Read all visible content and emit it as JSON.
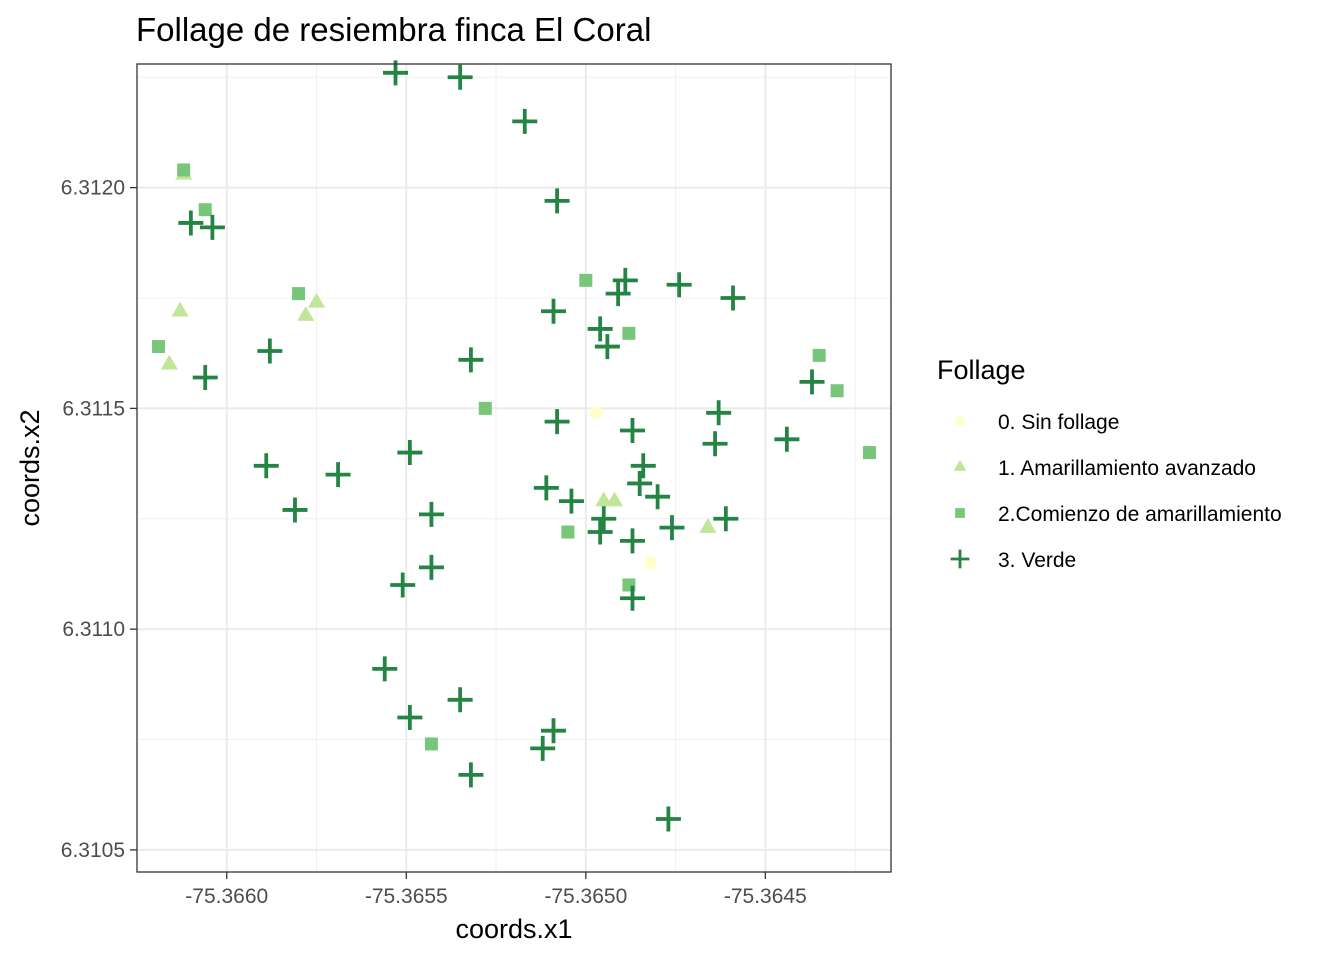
{
  "chart_data": {
    "type": "scatter",
    "title": "Follage de resiembra finca El Coral",
    "xlabel": "coords.x1",
    "ylabel": "coords.x2",
    "xlim": [
      -75.36625,
      -75.36415
    ],
    "ylim": [
      6.31045,
      6.31228
    ],
    "xticks": [
      -75.366,
      -75.3655,
      -75.365,
      -75.3645
    ],
    "xtick_labels": [
      "-75.3660",
      "-75.3655",
      "-75.3650",
      "-75.3645"
    ],
    "yticks": [
      6.3105,
      6.311,
      6.3115,
      6.312
    ],
    "ytick_labels": [
      "6.3105",
      "6.3110",
      "6.3115",
      "6.3120"
    ],
    "grid": true,
    "legend_title": "Follage",
    "legend_position": "right",
    "series": [
      {
        "name": "0. Sin follage",
        "marker": "circle",
        "color": "#ffffcc",
        "points": [
          [
            -75.36497,
            6.31149
          ],
          [
            -75.36482,
            6.31115
          ]
        ]
      },
      {
        "name": "1. Amarillamiento avanzado",
        "marker": "triangle",
        "color": "#c2e699",
        "points": [
          [
            -75.36612,
            6.31203
          ],
          [
            -75.36613,
            6.31172
          ],
          [
            -75.36616,
            6.3116
          ],
          [
            -75.36575,
            6.31174
          ],
          [
            -75.36578,
            6.31171
          ],
          [
            -75.36495,
            6.31129
          ],
          [
            -75.36492,
            6.31129
          ],
          [
            -75.36466,
            6.31123
          ]
        ]
      },
      {
        "name": "2.Comienzo de amarillamiento",
        "marker": "square",
        "color": "#78c679",
        "points": [
          [
            -75.36612,
            6.31204
          ],
          [
            -75.36606,
            6.31195
          ],
          [
            -75.36619,
            6.31164
          ],
          [
            -75.3658,
            6.31176
          ],
          [
            -75.36528,
            6.3115
          ],
          [
            -75.365,
            6.31179
          ],
          [
            -75.36488,
            6.31167
          ],
          [
            -75.36505,
            6.31122
          ],
          [
            -75.36488,
            6.3111
          ],
          [
            -75.36543,
            6.31074
          ],
          [
            -75.36435,
            6.31162
          ],
          [
            -75.3643,
            6.31154
          ],
          [
            -75.36421,
            6.3114
          ]
        ]
      },
      {
        "name": "3. Verde",
        "marker": "plus",
        "color": "#238443",
        "points": [
          [
            -75.36553,
            6.31226
          ],
          [
            -75.36535,
            6.31225
          ],
          [
            -75.36517,
            6.31215
          ],
          [
            -75.36508,
            6.31197
          ],
          [
            -75.3661,
            6.31192
          ],
          [
            -75.36604,
            6.31191
          ],
          [
            -75.36509,
            6.31172
          ],
          [
            -75.36496,
            6.31168
          ],
          [
            -75.36494,
            6.31164
          ],
          [
            -75.36491,
            6.31176
          ],
          [
            -75.36489,
            6.31179
          ],
          [
            -75.36474,
            6.31178
          ],
          [
            -75.36459,
            6.31175
          ],
          [
            -75.36588,
            6.31163
          ],
          [
            -75.36606,
            6.31157
          ],
          [
            -75.36532,
            6.31161
          ],
          [
            -75.36508,
            6.31147
          ],
          [
            -75.36487,
            6.31145
          ],
          [
            -75.36463,
            6.31149
          ],
          [
            -75.36464,
            6.31142
          ],
          [
            -75.36444,
            6.31143
          ],
          [
            -75.36437,
            6.31156
          ],
          [
            -75.36589,
            6.31137
          ],
          [
            -75.36569,
            6.31135
          ],
          [
            -75.36549,
            6.3114
          ],
          [
            -75.36581,
            6.31127
          ],
          [
            -75.36543,
            6.31126
          ],
          [
            -75.36543,
            6.31114
          ],
          [
            -75.36551,
            6.3111
          ],
          [
            -75.36511,
            6.31132
          ],
          [
            -75.36504,
            6.31129
          ],
          [
            -75.36495,
            6.31125
          ],
          [
            -75.36496,
            6.31122
          ],
          [
            -75.36487,
            6.3112
          ],
          [
            -75.36484,
            6.31137
          ],
          [
            -75.36485,
            6.31133
          ],
          [
            -75.3648,
            6.3113
          ],
          [
            -75.36476,
            6.31123
          ],
          [
            -75.36461,
            6.31125
          ],
          [
            -75.36487,
            6.31107
          ],
          [
            -75.36556,
            6.31091
          ],
          [
            -75.36549,
            6.3108
          ],
          [
            -75.36535,
            6.31084
          ],
          [
            -75.36532,
            6.31067
          ],
          [
            -75.36509,
            6.31077
          ],
          [
            -75.36512,
            6.31073
          ],
          [
            -75.36477,
            6.31057
          ]
        ]
      }
    ]
  }
}
